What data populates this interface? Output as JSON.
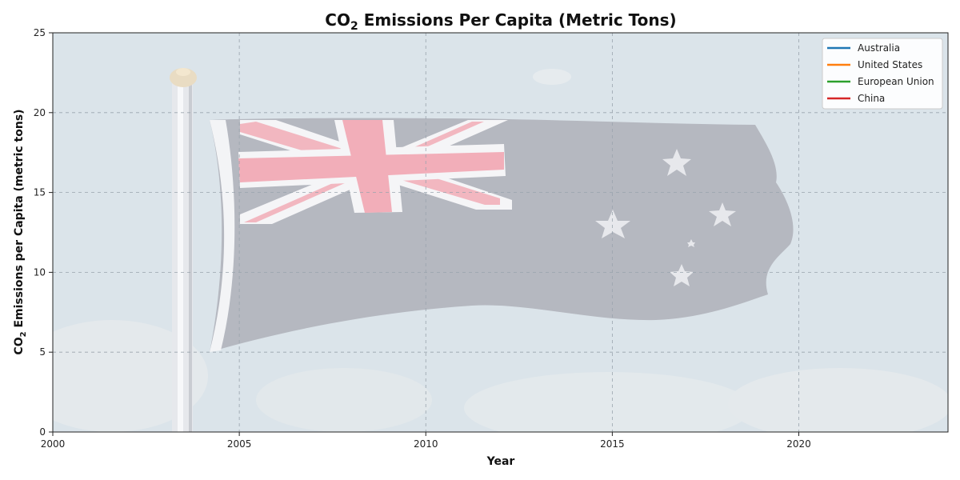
{
  "chart_data": {
    "type": "line",
    "title": {
      "prefix": "CO",
      "sub": "2",
      "suffix": " Emissions Per Capita (Metric Tons)"
    },
    "ylabel": {
      "prefix": "CO",
      "sub": "2",
      "suffix": " Emissions per Capita (metric tons)"
    },
    "xlabel": "Year",
    "xlim": [
      2000,
      2024
    ],
    "ylim": [
      0,
      25
    ],
    "x_ticks": [
      2000,
      2005,
      2010,
      2015,
      2020
    ],
    "y_ticks": [
      0,
      5,
      10,
      15,
      20,
      25
    ],
    "grid": true,
    "legend_position": "top-right",
    "background": "Australian flag photo (faded)",
    "series": [
      {
        "name": "Australia",
        "color": "#1f77b4",
        "x": [],
        "values": []
      },
      {
        "name": "United States",
        "color": "#ff7f0e",
        "x": [],
        "values": []
      },
      {
        "name": "European Union",
        "color": "#2ca02c",
        "x": [],
        "values": []
      },
      {
        "name": "China",
        "color": "#d62728",
        "x": [],
        "values": []
      }
    ]
  }
}
